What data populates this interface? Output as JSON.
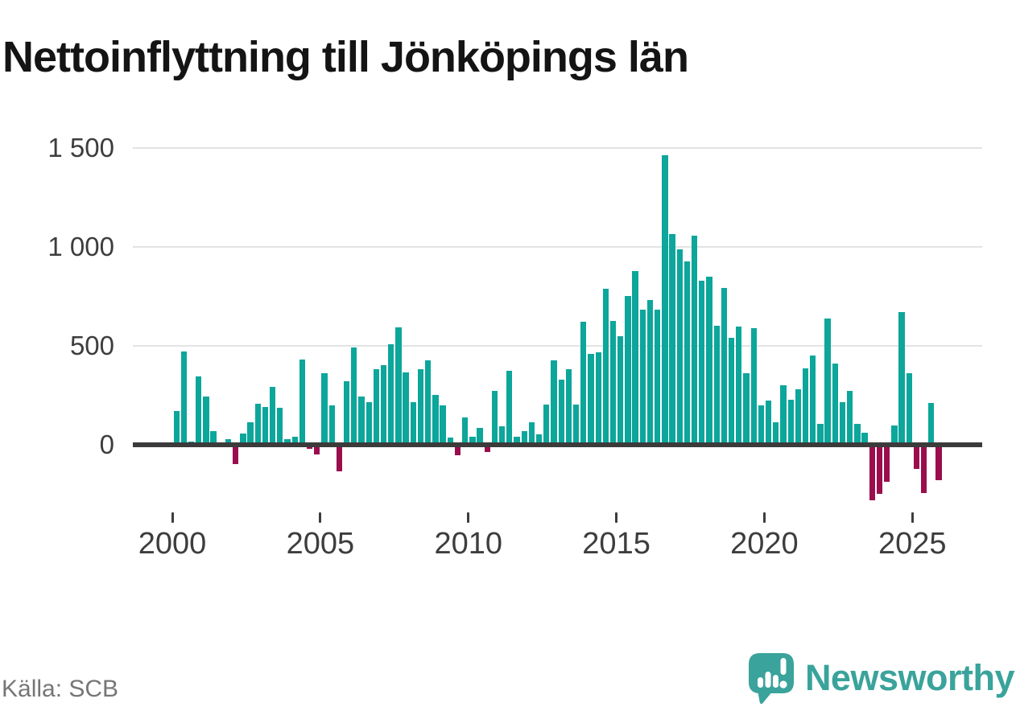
{
  "header": {
    "title": "Nettoinflyttning till Jönköpings län"
  },
  "footer": {
    "source": "Källa: SCB",
    "brand": "Newsworthy"
  },
  "colors": {
    "positive_bar": "#0CA69B",
    "negative_bar": "#9A0E4E",
    "axis": "#3B3B3B",
    "grid": "#E3E3E3",
    "brand": "#3AA39B",
    "label_text": "#3D3D3D",
    "muted_text": "#767676"
  },
  "chart_data": {
    "type": "bar",
    "title": "Nettoinflyttning till Jönköpings län",
    "xlabel": "",
    "ylabel": "",
    "grid": true,
    "legend": "none",
    "ylim": [
      -300,
      1550
    ],
    "y_ticks": [
      {
        "label": "0",
        "value": 0
      },
      {
        "label": "500",
        "value": 500
      },
      {
        "label": "1 000",
        "value": 1000
      },
      {
        "label": "1 500",
        "value": 1500
      }
    ],
    "x_ticks": [
      {
        "label": "2000",
        "qi": 0
      },
      {
        "label": "2005",
        "qi": 20
      },
      {
        "label": "2010",
        "qi": 40
      },
      {
        "label": "2015",
        "qi": 60
      },
      {
        "label": "2020",
        "qi": 80
      },
      {
        "label": "2025",
        "qi": 100
      }
    ],
    "frequency": "quarterly",
    "series": [
      {
        "name": "Nettoinflyttning",
        "years": [
          {
            "year": 2000,
            "values": [
              160,
              460,
              5,
              335
            ]
          },
          {
            "year": 2001,
            "values": [
              230,
              55,
              0,
              15
            ]
          },
          {
            "year": 2002,
            "values": [
              -85,
              45,
              100,
              195
            ]
          },
          {
            "year": 2003,
            "values": [
              180,
              280,
              175,
              15
            ]
          },
          {
            "year": 2004,
            "values": [
              30,
              420,
              -10,
              -35
            ]
          },
          {
            "year": 2005,
            "values": [
              350,
              185,
              -120,
              310
            ]
          },
          {
            "year": 2006,
            "values": [
              480,
              230,
              205,
              370
            ]
          },
          {
            "year": 2007,
            "values": [
              390,
              495,
              580,
              355
            ]
          },
          {
            "year": 2008,
            "values": [
              205,
              370,
              415,
              240
            ]
          },
          {
            "year": 2009,
            "values": [
              185,
              25,
              -40,
              125
            ]
          },
          {
            "year": 2010,
            "values": [
              30,
              75,
              -25,
              260
            ]
          },
          {
            "year": 2011,
            "values": [
              80,
              360,
              30,
              55
            ]
          },
          {
            "year": 2012,
            "values": [
              100,
              40,
              190,
              415
            ]
          },
          {
            "year": 2013,
            "values": [
              315,
              370,
              190,
              610
            ]
          },
          {
            "year": 2014,
            "values": [
              445,
              455,
              775,
              615
            ]
          },
          {
            "year": 2015,
            "values": [
              535,
              740,
              865,
              670
            ]
          },
          {
            "year": 2016,
            "values": [
              720,
              670,
              1450,
              1050
            ]
          },
          {
            "year": 2017,
            "values": [
              975,
              915,
              1045,
              815
            ]
          },
          {
            "year": 2018,
            "values": [
              835,
              590,
              780,
              530
            ]
          },
          {
            "year": 2019,
            "values": [
              585,
              350,
              575,
              185
            ]
          },
          {
            "year": 2020,
            "values": [
              210,
              100,
              290,
              215
            ]
          },
          {
            "year": 2021,
            "values": [
              270,
              375,
              440,
              95
            ]
          },
          {
            "year": 2022,
            "values": [
              625,
              400,
              205,
              260
            ]
          },
          {
            "year": 2023,
            "values": [
              95,
              50,
              -270,
              -235
            ]
          },
          {
            "year": 2024,
            "values": [
              -175,
              85,
              660,
              350
            ]
          },
          {
            "year": 2025,
            "values": [
              -110,
              -230,
              200,
              -165
            ]
          }
        ]
      }
    ]
  }
}
